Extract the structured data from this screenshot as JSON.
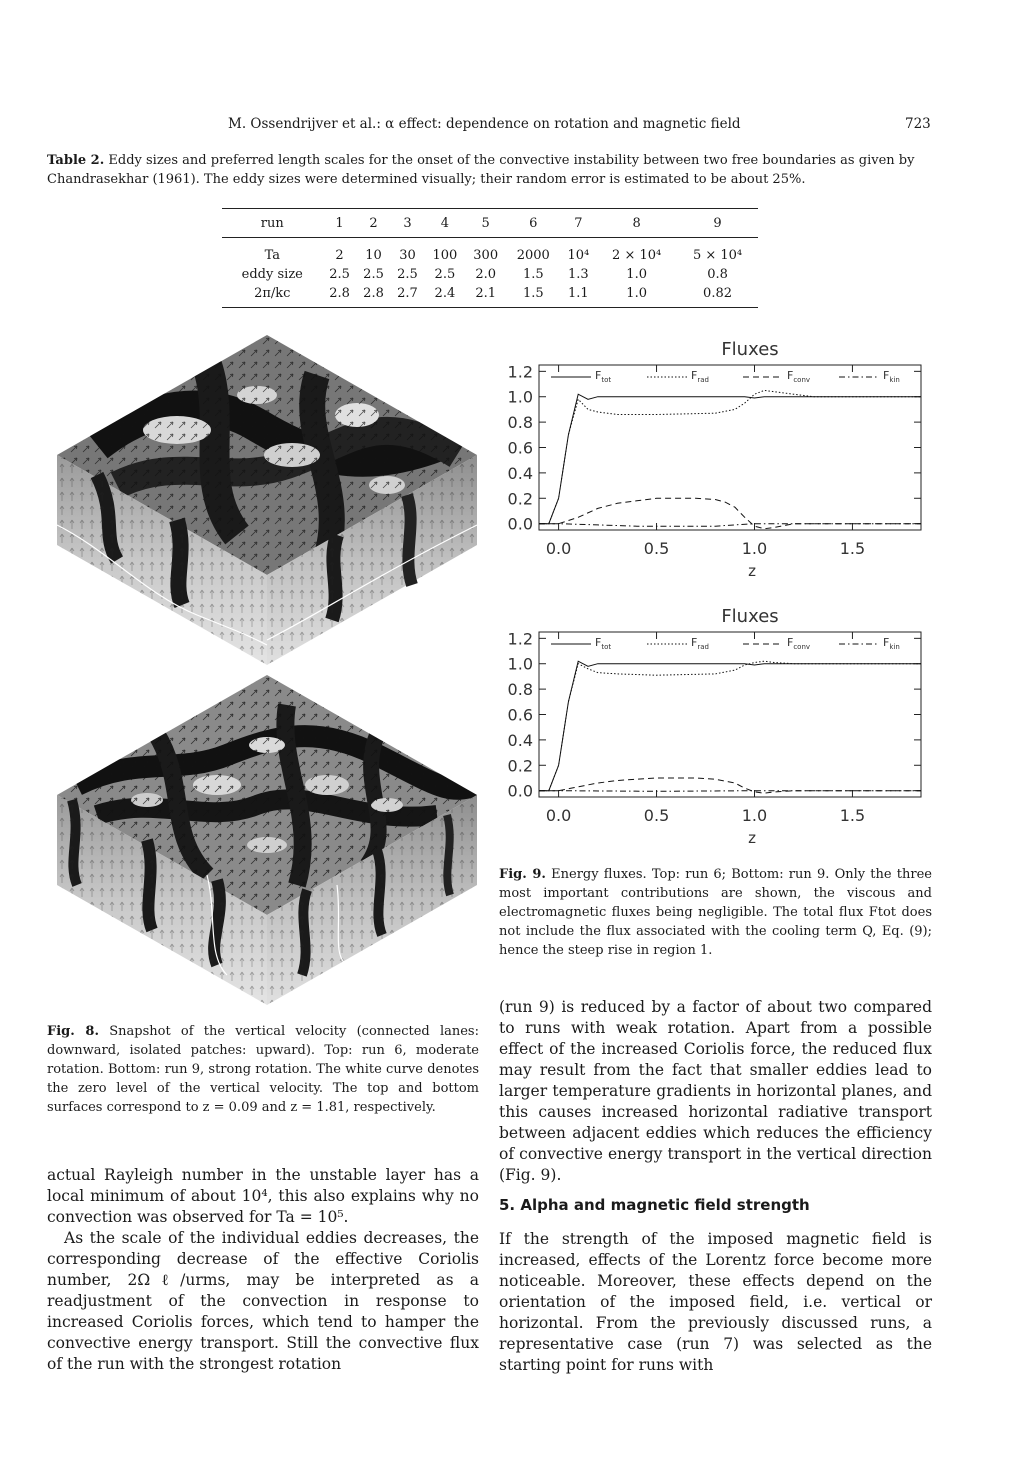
{
  "running_head": "M. Ossendrijver et al.: α effect: dependence on rotation and magnetic field",
  "page_number": "723",
  "table2": {
    "label": "Table 2.",
    "caption": "Eddy sizes and preferred length scales for the onset of the convective instability between two free boundaries as given by Chandrasekhar (1961). The eddy sizes were determined visually; their random error is estimated to be about 25%.",
    "header": [
      "run",
      "1",
      "2",
      "3",
      "4",
      "5",
      "6",
      "7",
      "8",
      "9"
    ],
    "rows": [
      [
        "Ta",
        "2",
        "10",
        "30",
        "100",
        "300",
        "2000",
        "10⁴",
        "2 × 10⁴",
        "5 × 10⁴"
      ],
      [
        "eddy size",
        "2.5",
        "2.5",
        "2.5",
        "2.5",
        "2.0",
        "1.5",
        "1.3",
        "1.0",
        "0.8"
      ],
      [
        "2π/kc",
        "2.8",
        "2.8",
        "2.7",
        "2.4",
        "2.1",
        "1.5",
        "1.1",
        "1.0",
        "0.82"
      ]
    ]
  },
  "fig8": {
    "label": "Fig. 8.",
    "caption": "Snapshot of the vertical velocity (connected lanes: downward, isolated patches: upward). Top: run 6, moderate rotation. Bottom: run 9, strong rotation. The white curve denotes the zero level of the vertical velocity. The top and bottom surfaces correspond to z = 0.09 and z = 1.81, respectively."
  },
  "fig9": {
    "label": "Fig. 9.",
    "caption": "Energy fluxes. Top: run 6; Bottom: run 9. Only the three most important contributions are shown, the viscous and electromagnetic fluxes being negligible. The total flux Ftot does not include the flux associated with the cooling term Q, Eq. (9); hence the steep rise in region 1."
  },
  "chart_data": [
    {
      "type": "line",
      "title": "Fluxes",
      "xlabel": "z",
      "ylabel": "",
      "xlim": [
        -0.1,
        1.85
      ],
      "ylim": [
        -0.05,
        1.25
      ],
      "xticks": [
        "0.0",
        "0.5",
        "1.0",
        "1.5"
      ],
      "yticks": [
        "0.0",
        "0.2",
        "0.4",
        "0.6",
        "0.8",
        "1.0",
        "1.2"
      ],
      "legend": [
        "F_tot",
        "F_rad",
        "F_conv",
        "F_kin"
      ],
      "series": [
        {
          "name": "F_tot",
          "x": [
            -0.1,
            -0.05,
            0.0,
            0.05,
            0.1,
            0.15,
            0.2,
            0.3,
            0.5,
            0.8,
            0.95,
            1.0,
            1.05,
            1.2,
            1.5,
            1.85
          ],
          "values": [
            0.0,
            0.0,
            0.2,
            0.7,
            1.02,
            0.98,
            1.0,
            1.0,
            1.0,
            1.0,
            1.0,
            0.99,
            1.0,
            1.0,
            1.0,
            1.0
          ]
        },
        {
          "name": "F_rad",
          "x": [
            -0.1,
            -0.05,
            0.0,
            0.05,
            0.1,
            0.15,
            0.2,
            0.3,
            0.5,
            0.8,
            0.9,
            0.95,
            1.0,
            1.05,
            1.1,
            1.2,
            1.3,
            1.5,
            1.85
          ],
          "values": [
            0.0,
            0.0,
            0.2,
            0.7,
            0.98,
            0.9,
            0.88,
            0.86,
            0.86,
            0.87,
            0.9,
            0.95,
            1.02,
            1.05,
            1.04,
            1.02,
            1.0,
            1.0,
            1.0
          ]
        },
        {
          "name": "F_conv",
          "x": [
            -0.1,
            0.0,
            0.1,
            0.2,
            0.3,
            0.4,
            0.5,
            0.6,
            0.7,
            0.8,
            0.85,
            0.9,
            0.95,
            1.0,
            1.05,
            1.1,
            1.2,
            1.3,
            1.85
          ],
          "values": [
            0.0,
            0.0,
            0.05,
            0.12,
            0.16,
            0.18,
            0.2,
            0.2,
            0.2,
            0.19,
            0.17,
            0.13,
            0.05,
            -0.02,
            -0.04,
            -0.03,
            0.0,
            0.0,
            0.0
          ]
        },
        {
          "name": "F_kin",
          "x": [
            -0.1,
            0.0,
            0.2,
            0.4,
            0.6,
            0.8,
            0.9,
            1.0,
            1.1,
            1.2,
            1.85
          ],
          "values": [
            0.0,
            0.0,
            -0.01,
            -0.02,
            -0.02,
            -0.02,
            -0.01,
            0.0,
            0.0,
            0.0,
            0.0
          ]
        }
      ]
    },
    {
      "type": "line",
      "title": "Fluxes",
      "xlabel": "z",
      "ylabel": "",
      "xlim": [
        -0.1,
        1.85
      ],
      "ylim": [
        -0.05,
        1.25
      ],
      "xticks": [
        "0.0",
        "0.5",
        "1.0",
        "1.5"
      ],
      "yticks": [
        "0.0",
        "0.2",
        "0.4",
        "0.6",
        "0.8",
        "1.0",
        "1.2"
      ],
      "legend": [
        "F_tot",
        "F_rad",
        "F_conv",
        "F_kin"
      ],
      "series": [
        {
          "name": "F_tot",
          "x": [
            -0.1,
            -0.05,
            0.0,
            0.05,
            0.1,
            0.15,
            0.2,
            0.3,
            0.5,
            0.8,
            0.95,
            1.0,
            1.05,
            1.2,
            1.5,
            1.85
          ],
          "values": [
            0.0,
            0.0,
            0.2,
            0.7,
            1.02,
            0.98,
            1.0,
            1.0,
            1.0,
            1.0,
            1.0,
            0.99,
            1.0,
            1.0,
            1.0,
            1.0
          ]
        },
        {
          "name": "F_rad",
          "x": [
            -0.1,
            -0.05,
            0.0,
            0.05,
            0.1,
            0.15,
            0.2,
            0.3,
            0.5,
            0.8,
            0.9,
            0.95,
            1.0,
            1.05,
            1.1,
            1.2,
            1.5,
            1.85
          ],
          "values": [
            0.0,
            0.0,
            0.2,
            0.7,
            1.0,
            0.96,
            0.93,
            0.92,
            0.91,
            0.92,
            0.95,
            0.99,
            1.01,
            1.02,
            1.01,
            1.0,
            1.0,
            1.0
          ]
        },
        {
          "name": "F_conv",
          "x": [
            -0.1,
            0.0,
            0.1,
            0.2,
            0.3,
            0.4,
            0.5,
            0.6,
            0.7,
            0.8,
            0.9,
            0.95,
            1.0,
            1.05,
            1.1,
            1.2,
            1.85
          ],
          "values": [
            0.0,
            0.0,
            0.03,
            0.06,
            0.08,
            0.09,
            0.1,
            0.1,
            0.1,
            0.09,
            0.06,
            0.02,
            -0.01,
            -0.02,
            -0.01,
            0.0,
            0.0
          ]
        },
        {
          "name": "F_kin",
          "x": [
            -0.1,
            0.0,
            0.5,
            1.0,
            1.85
          ],
          "values": [
            0.0,
            0.0,
            -0.005,
            0.0,
            0.0
          ]
        }
      ]
    }
  ],
  "right_column": "(run 9) is reduced by a factor of about two compared to runs with weak rotation. Apart from a possible effect of the increased Coriolis force, the reduced flux may result from the fact that smaller eddies lead to larger temperature gradients in horizontal planes, and this causes increased horizontal radiative transport between adjacent eddies which reduces the efficiency of convective energy transport in the vertical direction (Fig. 9).",
  "section5": {
    "title": "5. Alpha and magnetic field strength",
    "text": "If the strength of the imposed magnetic field is increased, effects of the Lorentz force become more noticeable. Moreover, these effects depend on the orientation of the imposed field, i.e. vertical or horizontal. From the previously discussed runs, a representative case (run 7) was selected as the starting point for runs with"
  },
  "left_column": {
    "p1": "actual Rayleigh number in the unstable layer has a local minimum of about 10⁴, this also explains why no convection was observed for Ta = 10⁵.",
    "p2": "As the scale of the individual eddies decreases, the corresponding decrease of the effective Coriolis number, 2Ωℓ/urms, may be interpreted as a readjustment of the convection in response to increased Coriolis forces, which tend to hamper the convective energy transport. Still the convective flux of the run with the strongest rotation"
  }
}
